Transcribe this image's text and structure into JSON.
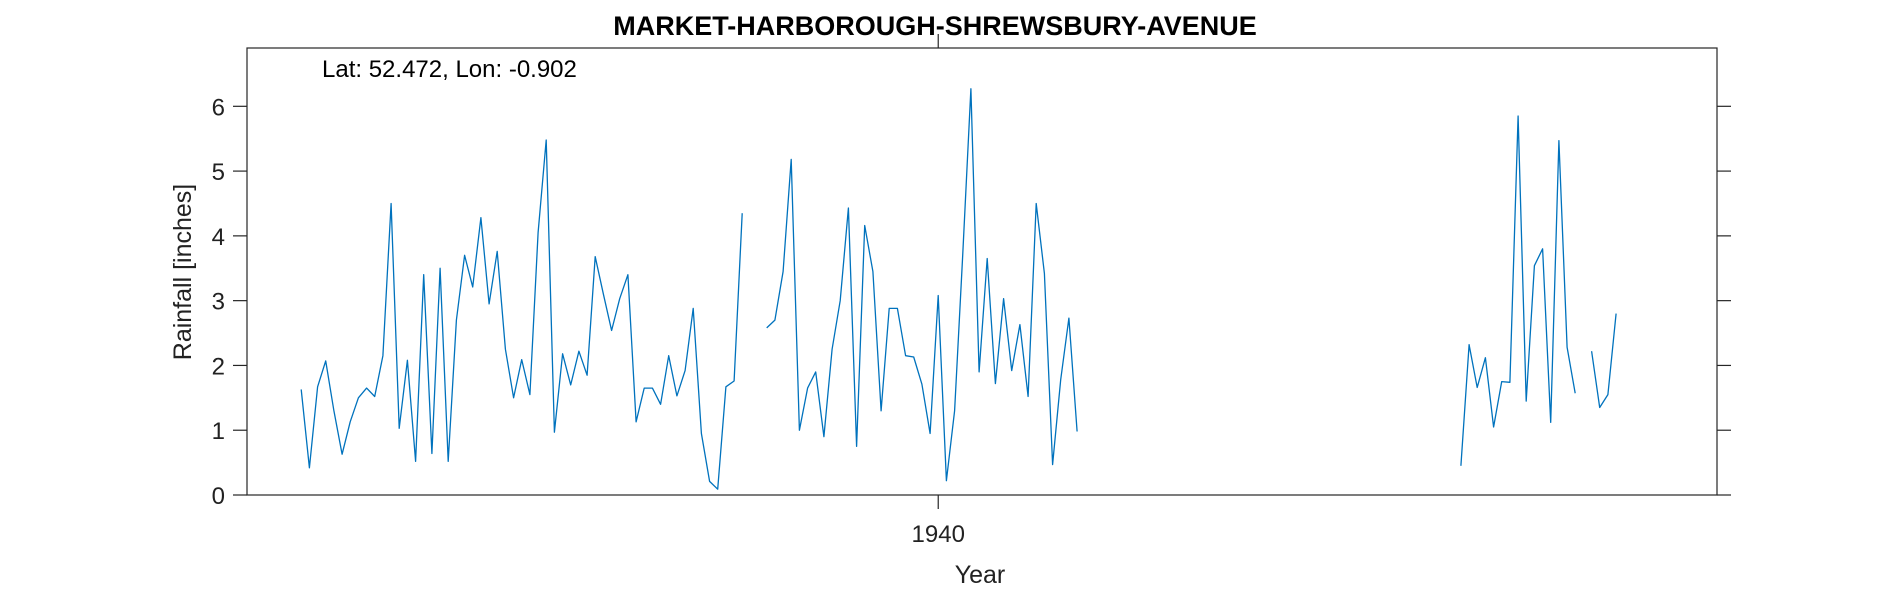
{
  "chart_data": {
    "type": "line",
    "title": "MARKET-HARBOROUGH-SHREWSBURY-AVENUE",
    "annotation": "Lat: 52.472, Lon: -0.902",
    "xlabel": "Year",
    "ylabel": "Rainfall [inches]",
    "xlim": [
      1929.42,
      1951.92
    ],
    "ylim": [
      0,
      6.9
    ],
    "yticks": [
      0,
      1,
      2,
      3,
      4,
      5,
      6
    ],
    "xticks": [
      {
        "value": 1940,
        "label": "1940"
      }
    ],
    "grid": false,
    "legend": "none",
    "color": "#0072BD",
    "segments": [
      [
        [
          1930.25,
          1.63
        ],
        [
          1930.375,
          0.42
        ],
        [
          1930.5,
          1.67
        ],
        [
          1930.625,
          2.07
        ],
        [
          1930.75,
          1.3
        ],
        [
          1930.875,
          0.63
        ],
        [
          1931.0,
          1.13
        ],
        [
          1931.125,
          1.5
        ],
        [
          1931.25,
          1.65
        ],
        [
          1931.375,
          1.52
        ],
        [
          1931.5,
          2.15
        ],
        [
          1931.625,
          4.5
        ],
        [
          1931.75,
          1.03
        ],
        [
          1931.875,
          2.08
        ],
        [
          1932.0,
          0.52
        ],
        [
          1932.125,
          3.4
        ],
        [
          1932.25,
          0.64
        ],
        [
          1932.375,
          3.5
        ],
        [
          1932.5,
          0.52
        ],
        [
          1932.625,
          2.7
        ],
        [
          1932.75,
          3.7
        ],
        [
          1932.875,
          3.21
        ],
        [
          1933.0,
          4.28
        ],
        [
          1933.125,
          2.95
        ],
        [
          1933.25,
          3.76
        ],
        [
          1933.375,
          2.25
        ],
        [
          1933.5,
          1.5
        ],
        [
          1933.625,
          2.09
        ],
        [
          1933.75,
          1.55
        ],
        [
          1933.875,
          4.05
        ],
        [
          1934.0,
          5.48
        ],
        [
          1934.125,
          0.97
        ],
        [
          1934.25,
          2.18
        ],
        [
          1934.375,
          1.7
        ],
        [
          1934.5,
          2.22
        ],
        [
          1934.625,
          1.85
        ],
        [
          1934.75,
          3.68
        ],
        [
          1934.875,
          3.1
        ],
        [
          1935.0,
          2.54
        ],
        [
          1935.125,
          3.03
        ],
        [
          1935.25,
          3.4
        ],
        [
          1935.375,
          1.13
        ],
        [
          1935.5,
          1.65
        ],
        [
          1935.625,
          1.65
        ],
        [
          1935.75,
          1.4
        ],
        [
          1935.875,
          2.15
        ],
        [
          1936.0,
          1.53
        ],
        [
          1936.125,
          1.92
        ],
        [
          1936.25,
          2.88
        ],
        [
          1936.375,
          0.95
        ],
        [
          1936.5,
          0.21
        ],
        [
          1936.625,
          0.09
        ],
        [
          1936.75,
          1.67
        ],
        [
          1936.875,
          1.76
        ],
        [
          1937.0,
          4.35
        ]
      ],
      [
        [
          1937.375,
          2.58
        ],
        [
          1937.5,
          2.7
        ],
        [
          1937.625,
          3.45
        ],
        [
          1937.75,
          5.18
        ],
        [
          1937.875,
          1.0
        ],
        [
          1938.0,
          1.65
        ],
        [
          1938.125,
          1.9
        ],
        [
          1938.25,
          0.9
        ],
        [
          1938.375,
          2.25
        ],
        [
          1938.5,
          3.0
        ],
        [
          1938.625,
          4.43
        ],
        [
          1938.75,
          0.75
        ],
        [
          1938.875,
          4.16
        ],
        [
          1939.0,
          3.45
        ],
        [
          1939.125,
          1.3
        ],
        [
          1939.25,
          2.88
        ],
        [
          1939.375,
          2.88
        ],
        [
          1939.5,
          2.15
        ],
        [
          1939.625,
          2.13
        ],
        [
          1939.75,
          1.71
        ],
        [
          1939.875,
          0.95
        ],
        [
          1940.0,
          3.08
        ],
        [
          1940.125,
          0.22
        ],
        [
          1940.25,
          1.3
        ],
        [
          1940.375,
          3.7
        ],
        [
          1940.5,
          6.27
        ],
        [
          1940.625,
          1.9
        ],
        [
          1940.75,
          3.65
        ],
        [
          1940.875,
          1.72
        ],
        [
          1941.0,
          3.03
        ],
        [
          1941.125,
          1.92
        ],
        [
          1941.25,
          2.63
        ],
        [
          1941.375,
          1.52
        ],
        [
          1941.5,
          4.5
        ],
        [
          1941.625,
          3.42
        ],
        [
          1941.75,
          0.47
        ],
        [
          1941.875,
          1.78
        ],
        [
          1942.0,
          2.73
        ],
        [
          1942.125,
          0.98
        ]
      ],
      [
        [
          1948.0,
          0.45
        ],
        [
          1948.125,
          2.32
        ],
        [
          1948.25,
          1.66
        ],
        [
          1948.375,
          2.12
        ],
        [
          1948.5,
          1.05
        ],
        [
          1948.625,
          1.75
        ],
        [
          1948.75,
          1.74
        ],
        [
          1948.875,
          5.85
        ],
        [
          1949.0,
          1.45
        ],
        [
          1949.125,
          3.54
        ],
        [
          1949.25,
          3.8
        ],
        [
          1949.375,
          1.12
        ],
        [
          1949.5,
          5.47
        ],
        [
          1949.625,
          2.28
        ],
        [
          1949.75,
          1.57
        ]
      ],
      [
        [
          1950.0,
          2.22
        ],
        [
          1950.125,
          1.35
        ],
        [
          1950.25,
          1.55
        ],
        [
          1950.375,
          2.8
        ]
      ]
    ]
  }
}
